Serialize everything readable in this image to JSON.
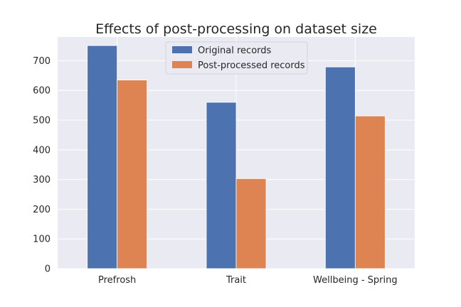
{
  "chart_data": {
    "type": "bar",
    "title": "Effects of post-processing on dataset size",
    "xlabel": "",
    "ylabel": "",
    "categories": [
      "Prefrosh",
      "Trait",
      "Wellbeing - Spring"
    ],
    "series": [
      {
        "name": "Original records",
        "values": [
          751,
          560,
          679
        ],
        "color": "#4c72b0"
      },
      {
        "name": "Post-processed records",
        "values": [
          635,
          303,
          514
        ],
        "color": "#dd8452"
      }
    ],
    "ylim": [
      0,
      780
    ],
    "yticks": [
      0,
      100,
      200,
      300,
      400,
      500,
      600,
      700
    ],
    "grid": true,
    "legend": "top-center",
    "background": "#eaeaf2"
  }
}
